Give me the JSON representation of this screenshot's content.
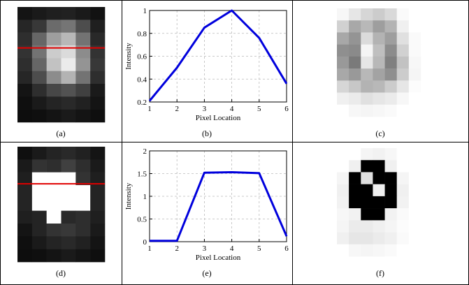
{
  "captions": [
    "(a)",
    "(b)",
    "(c)",
    "(d)",
    "(e)",
    "(f)"
  ],
  "images": {
    "a": {
      "grayscale": [
        [
          0.08,
          0.1,
          0.12,
          0.13,
          0.1,
          0.07
        ],
        [
          0.15,
          0.22,
          0.42,
          0.46,
          0.3,
          0.12
        ],
        [
          0.18,
          0.4,
          0.62,
          0.72,
          0.45,
          0.16
        ],
        [
          0.2,
          0.45,
          0.8,
          0.86,
          0.55,
          0.2
        ],
        [
          0.18,
          0.4,
          0.76,
          0.92,
          0.58,
          0.22
        ],
        [
          0.15,
          0.3,
          0.55,
          0.7,
          0.45,
          0.18
        ],
        [
          0.08,
          0.18,
          0.28,
          0.32,
          0.25,
          0.1
        ],
        [
          0.06,
          0.1,
          0.14,
          0.16,
          0.13,
          0.08
        ],
        [
          0.05,
          0.06,
          0.08,
          0.1,
          0.08,
          0.06
        ]
      ],
      "line_row": 3.2,
      "line_color": "#e00000"
    },
    "c": {
      "grayscale": [
        [
          0.97,
          0.9,
          0.84,
          0.8,
          0.85,
          0.98,
          1.0
        ],
        [
          0.82,
          0.66,
          0.72,
          0.62,
          0.7,
          0.94,
          1.0
        ],
        [
          0.66,
          0.58,
          0.86,
          0.7,
          0.62,
          0.88,
          0.98
        ],
        [
          0.56,
          0.54,
          0.96,
          0.75,
          0.55,
          0.82,
          0.98
        ],
        [
          0.6,
          0.48,
          0.9,
          0.72,
          0.5,
          0.76,
          0.97
        ],
        [
          0.66,
          0.6,
          0.72,
          0.64,
          0.56,
          0.8,
          0.96
        ],
        [
          0.84,
          0.78,
          0.7,
          0.72,
          0.8,
          0.9,
          0.99
        ],
        [
          0.94,
          0.92,
          0.88,
          0.9,
          0.92,
          0.97,
          1.0
        ],
        [
          1.0,
          0.97,
          0.96,
          0.97,
          0.98,
          1.0,
          1.0
        ]
      ]
    },
    "d": {
      "grayscale": [
        [
          0.06,
          0.1,
          0.14,
          0.16,
          0.13,
          0.08
        ],
        [
          0.1,
          0.2,
          0.18,
          0.25,
          0.18,
          0.1
        ],
        [
          0.12,
          1.0,
          1.0,
          1.0,
          0.2,
          0.12
        ],
        [
          0.14,
          1.0,
          1.0,
          1.0,
          1.0,
          0.14
        ],
        [
          0.14,
          1.0,
          1.0,
          1.0,
          1.0,
          0.14
        ],
        [
          0.12,
          0.14,
          1.0,
          0.16,
          0.18,
          0.12
        ],
        [
          0.08,
          0.14,
          0.2,
          0.22,
          0.18,
          0.1
        ],
        [
          0.06,
          0.1,
          0.14,
          0.16,
          0.13,
          0.08
        ],
        [
          0.05,
          0.06,
          0.08,
          0.1,
          0.08,
          0.06
        ]
      ],
      "line_row": 2.9,
      "line_color": "#e00000"
    },
    "f": {
      "grayscale": [
        [
          1.0,
          1.0,
          0.96,
          0.95,
          0.97,
          1.0,
          1.0
        ],
        [
          1.0,
          0.94,
          0.0,
          0.0,
          0.94,
          1.0,
          1.0
        ],
        [
          0.96,
          0.0,
          0.88,
          0.0,
          0.0,
          0.96,
          1.0
        ],
        [
          0.94,
          0.0,
          0.0,
          0.94,
          0.0,
          0.94,
          1.0
        ],
        [
          0.95,
          0.0,
          0.0,
          0.0,
          0.0,
          0.95,
          1.0
        ],
        [
          0.97,
          0.95,
          0.0,
          0.0,
          0.95,
          0.98,
          1.0
        ],
        [
          0.96,
          0.92,
          0.92,
          0.94,
          0.96,
          0.99,
          1.0
        ],
        [
          0.94,
          0.9,
          0.9,
          0.92,
          0.94,
          0.98,
          1.0
        ],
        [
          1.0,
          0.97,
          0.96,
          0.97,
          0.98,
          1.0,
          1.0
        ]
      ]
    }
  },
  "chart_data": [
    {
      "type": "line",
      "x": [
        1,
        2,
        3,
        4,
        5,
        6
      ],
      "y": [
        0.21,
        0.5,
        0.85,
        1.0,
        0.76,
        0.36
      ],
      "xlabel": "Pixel Location",
      "ylabel": "Intensity",
      "xlim": [
        1,
        6
      ],
      "ylim": [
        0.2,
        1
      ],
      "xticks": [
        "1",
        "2",
        "3",
        "4",
        "5",
        "6"
      ],
      "yticks": [
        "0.2",
        "0.4",
        "0.6",
        "0.8",
        "1"
      ],
      "ytick_values": [
        0.2,
        0.4,
        0.6,
        0.8,
        1.0
      ],
      "grid": true,
      "line_color": "#0000dd"
    },
    {
      "type": "line",
      "x": [
        1,
        2,
        3,
        4,
        5,
        6
      ],
      "y": [
        0.02,
        0.02,
        1.52,
        1.53,
        1.51,
        0.12
      ],
      "xlabel": "Pixel Location",
      "ylabel": "Intensity",
      "xlim": [
        1,
        6
      ],
      "ylim": [
        0,
        2
      ],
      "xticks": [
        "1",
        "2",
        "3",
        "4",
        "5",
        "6"
      ],
      "yticks": [
        "0",
        "0.5",
        "1",
        "1.5",
        "2"
      ],
      "ytick_values": [
        0,
        0.5,
        1,
        1.5,
        2
      ],
      "grid": true,
      "line_color": "#0000dd"
    }
  ]
}
